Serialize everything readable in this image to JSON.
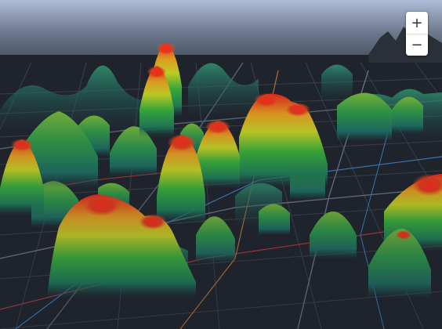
{
  "map": {
    "theme": "dark",
    "layer": "3d-heatmap",
    "colors": {
      "ground": "#1f242c",
      "block": "#2a3039",
      "road_minor": "#3a414b",
      "road_major": "#6b7380",
      "road_accent_red": "#b33a3e",
      "road_accent_blue": "#3f7fc4",
      "road_accent_orange": "#c87a38",
      "sky_top": "#aebdd6",
      "sky_bottom": "#1f242c",
      "heat_low": "#1f6f6a",
      "heat_mid": "#2fa83a",
      "heat_high": "#e8e020",
      "heat_peak": "#e8231c"
    }
  },
  "zoom": {
    "in_label": "+",
    "out_label": "−",
    "in_icon": "plus-icon",
    "out_icon": "minus-icon"
  }
}
